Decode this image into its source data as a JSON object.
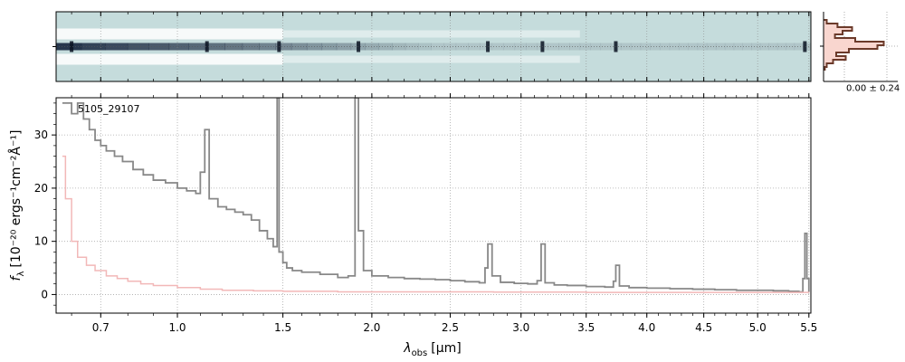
{
  "chart_data": [
    {
      "type": "heatmap",
      "panel": "2d-spectrum",
      "description_of_content": "2D dispersed spectrum image, trace centred in the middle row, bright across 0.6-1.9 um",
      "bright_columns_um": [
        0.6,
        1.13,
        1.48,
        1.92,
        2.76,
        3.16,
        3.74,
        5.46
      ],
      "colors": {
        "background": "#c5dcdc",
        "trace_dark": "#1f2d44",
        "saturated": "#ffffff"
      }
    },
    {
      "type": "line",
      "panel": "profile",
      "tick_label": "0.00 ± 0.24",
      "colors": {
        "fill": "#f9d6cf",
        "line": "#6b3a2a"
      }
    },
    {
      "type": "line",
      "panel": "1d-spectrum",
      "annotation": "5105_29107",
      "xlabel_text": "λ",
      "xlabel_sub": "obs",
      "xlabel_unit": "[μm]",
      "ylabel_text": "f",
      "ylabel_sub": "λ",
      "ylabel_unit": "[10⁻²⁰ ergs⁻¹cm⁻²Å⁻¹]",
      "x_scale": "sqrt",
      "xlim": [
        0.55,
        5.52
      ],
      "ylim": [
        -3.5,
        37
      ],
      "x_ticks": [
        0.7,
        1.0,
        1.5,
        2.0,
        2.5,
        3.0,
        3.5,
        4.0,
        4.5,
        5.0,
        5.5
      ],
      "x_tick_labels": [
        "0.7",
        "1.0",
        "1.5",
        "2.0",
        "2.5",
        "3.0",
        "3.5",
        "4.0",
        "4.5",
        "5.0",
        "5.5"
      ],
      "y_ticks": [
        0,
        10,
        20,
        30
      ],
      "y_tick_labels": [
        "0",
        "10",
        "20",
        "30"
      ],
      "grid": true,
      "series": [
        {
          "role": "flux",
          "color": "#888888",
          "x": [
            0.57,
            0.6,
            0.62,
            0.64,
            0.66,
            0.68,
            0.7,
            0.72,
            0.75,
            0.78,
            0.82,
            0.86,
            0.9,
            0.95,
            1.0,
            1.04,
            1.08,
            1.1,
            1.12,
            1.14,
            1.18,
            1.22,
            1.26,
            1.3,
            1.34,
            1.38,
            1.42,
            1.45,
            1.47,
            1.48,
            1.5,
            1.52,
            1.55,
            1.6,
            1.7,
            1.8,
            1.86,
            1.9,
            1.92,
            1.95,
            2.0,
            2.1,
            2.2,
            2.3,
            2.4,
            2.5,
            2.6,
            2.7,
            2.74,
            2.76,
            2.79,
            2.85,
            2.95,
            3.05,
            3.12,
            3.15,
            3.18,
            3.25,
            3.35,
            3.5,
            3.65,
            3.72,
            3.74,
            3.77,
            3.85,
            4.0,
            4.2,
            4.4,
            4.6,
            4.8,
            5.0,
            5.15,
            5.3,
            5.4,
            5.44,
            5.46,
            5.48,
            5.5
          ],
          "y": [
            36,
            34,
            36,
            33,
            31,
            29,
            28,
            27,
            26,
            25,
            23.5,
            22.5,
            21.5,
            21,
            20,
            19.5,
            19,
            23,
            31,
            18,
            16.5,
            16,
            15.5,
            15,
            14,
            12,
            10.5,
            9,
            37,
            8,
            6,
            5,
            4.5,
            4.2,
            3.8,
            3.2,
            3.5,
            37,
            12,
            4.5,
            3.5,
            3.2,
            3.0,
            2.9,
            2.8,
            2.6,
            2.4,
            2.2,
            5,
            9.5,
            3.5,
            2.3,
            2.1,
            2.0,
            2.6,
            9.5,
            2.2,
            1.8,
            1.7,
            1.5,
            1.4,
            2.5,
            5.5,
            1.6,
            1.3,
            1.2,
            1.1,
            1.0,
            0.9,
            0.8,
            0.8,
            0.7,
            0.6,
            0.5,
            3.0,
            11.5,
            3.0,
            0.5
          ]
        },
        {
          "role": "error",
          "color": "#f2b8b8",
          "x": [
            0.57,
            0.58,
            0.6,
            0.62,
            0.65,
            0.68,
            0.72,
            0.76,
            0.8,
            0.85,
            0.9,
            1.0,
            1.1,
            1.2,
            1.35,
            1.5,
            1.8,
            2.2,
            2.8,
            3.5,
            4.5,
            5.5
          ],
          "y": [
            26,
            18,
            10,
            7,
            5.5,
            4.5,
            3.5,
            3,
            2.5,
            2,
            1.7,
            1.3,
            1.0,
            0.8,
            0.7,
            0.6,
            0.5,
            0.5,
            0.45,
            0.4,
            0.4,
            0.35
          ]
        }
      ]
    }
  ]
}
